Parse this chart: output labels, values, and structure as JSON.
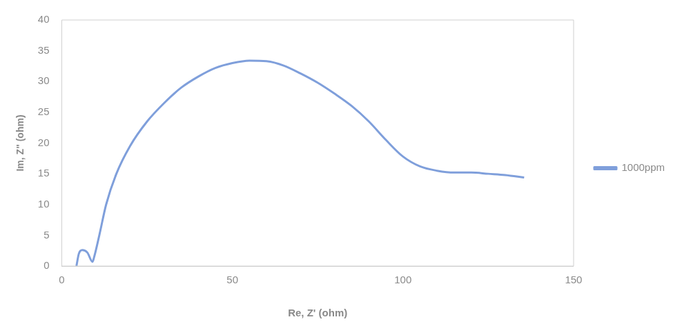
{
  "chart_data": {
    "type": "line",
    "xlabel": "Re, Z' (ohm)",
    "ylabel": "Im, Z\" (ohm)",
    "xlim": [
      0,
      150
    ],
    "xticks": [
      0,
      50,
      100,
      150
    ],
    "ylim": [
      0,
      40
    ],
    "yticks": [
      0,
      5,
      10,
      15,
      20,
      25,
      30,
      35,
      40
    ],
    "grid": false,
    "legend": "right",
    "marker": "none",
    "series": [
      {
        "name": "1000ppm",
        "color": "#7f9fdb",
        "x": [
          4.3,
          5,
          6,
          7.5,
          9,
          9.5,
          11,
          13,
          16,
          20,
          25,
          30,
          35,
          40,
          45,
          50,
          55,
          60,
          65,
          70,
          75,
          80,
          85,
          90,
          95,
          100,
          105,
          110,
          115,
          120,
          125,
          130,
          135.5
        ],
        "values": [
          0,
          2,
          2.6,
          2.2,
          0.7,
          1.5,
          5,
          10,
          15,
          19.5,
          23.5,
          26.5,
          29,
          30.8,
          32.2,
          33,
          33.4,
          33.3,
          32.6,
          31.3,
          29.8,
          28,
          26,
          23.5,
          20.5,
          17.8,
          16.2,
          15.5,
          15.2,
          15.2,
          15,
          14.8,
          14.4
        ]
      }
    ]
  }
}
